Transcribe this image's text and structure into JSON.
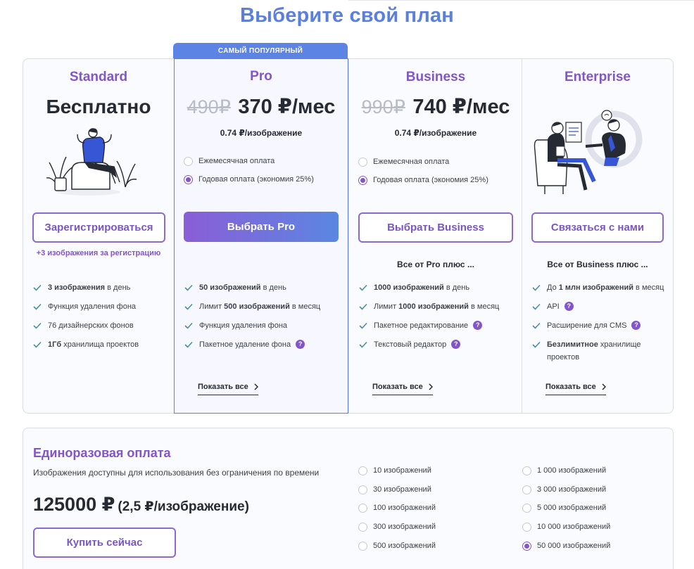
{
  "page_title": "Выберите свой план",
  "popular_badge": "САМЫЙ ПОПУЛЯРНЫЙ",
  "plans": {
    "standard": {
      "name": "Standard",
      "price": "Бесплатно",
      "button": "Зарегистрироваться",
      "bonus": "+3 изображения за регистрацию",
      "features": [
        {
          "bold": "3 изображения",
          "text": " в день"
        },
        {
          "text": "Функция удаления фона"
        },
        {
          "text": "76 дизайнерских фонов"
        },
        {
          "bold": "1Гб",
          "text": " хранилища проектов"
        }
      ]
    },
    "pro": {
      "name": "Pro",
      "old_price": "490₽",
      "new_price": "370 ₽/мес",
      "per_image": "0.74 ₽/изображение",
      "option_monthly": "Ежемесячная оплата",
      "option_yearly": "Годовая оплата (экономия 25%)",
      "selected_option": "yearly",
      "button": "Выбрать Pro",
      "features": [
        {
          "bold": "50 изображений",
          "text": " в день"
        },
        {
          "pre": "Лимит ",
          "bold": "500 изображений",
          "text": " в месяц"
        },
        {
          "text": "Функция удаления фона"
        },
        {
          "text": "Пакетное удаление фона",
          "help": "?"
        }
      ],
      "show_all": "Показать все"
    },
    "business": {
      "name": "Business",
      "old_price": "990₽",
      "new_price": "740 ₽/мес",
      "per_image": "0.74 ₽/изображение",
      "option_monthly": "Ежемесячная оплата",
      "option_yearly": "Годовая оплата (экономия 25%)",
      "selected_option": "yearly",
      "button": "Выбрать Business",
      "all_from": "Все от Pro плюс ...",
      "features": [
        {
          "bold": "1000 изображений",
          "text": " в день"
        },
        {
          "pre": "Лимит ",
          "bold": "1000 изображений",
          "text": " в месяц"
        },
        {
          "text": "Пакетное редактирование",
          "help": "?"
        },
        {
          "text": "Текстовый редактор",
          "help": "?"
        }
      ],
      "show_all": "Показать все"
    },
    "enterprise": {
      "name": "Enterprise",
      "button": "Связаться с нами",
      "all_from": "Все от Business плюс ...",
      "features": [
        {
          "pre": "До ",
          "bold": "1 млн изображений",
          "text": " в месяц"
        },
        {
          "text": "API",
          "help": "?"
        },
        {
          "text": "Расширение для CMS",
          "help": "?"
        },
        {
          "bold": "Безлимитное",
          "text": " хранилище проектов"
        }
      ],
      "show_all": "Показать все"
    }
  },
  "onetime": {
    "title": "Единоразовая оплата",
    "description": "Изображения доступны для использования без ограничения по времени",
    "price": "125000 ₽",
    "per_image": "(2,5 ₽/изображение)",
    "button": "Купить сейчас",
    "quantities": [
      "10 изображений",
      "30 изображений",
      "100 изображений",
      "300 изображений",
      "500 изображений",
      "1 000 изображений",
      "3 000 изображений",
      "5 000 изображений",
      "10 000 изображений",
      "50 000 изображений"
    ],
    "selected_quantity": "50 000 изображений"
  },
  "icons": {
    "check": "check-icon",
    "help": "question-icon",
    "chevron": "chevron-right-icon"
  },
  "colors": {
    "accent_purple": "#8256c9",
    "accent_blue": "#5c84e4",
    "check": "#4a8fa0"
  }
}
